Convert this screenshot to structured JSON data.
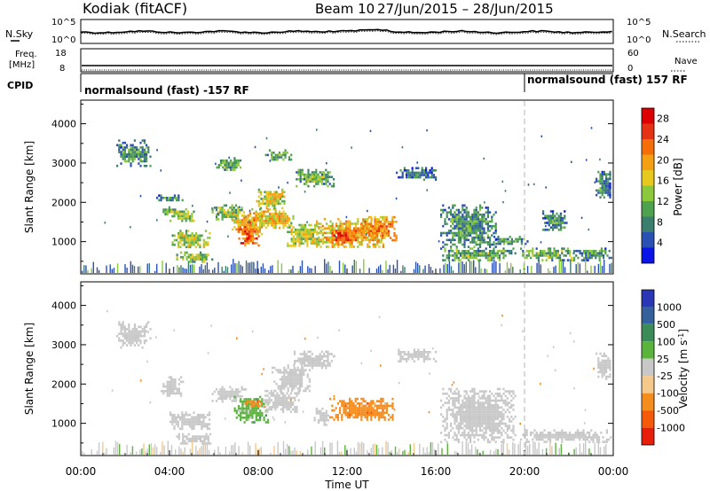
{
  "header": {
    "title": "Kodiak (fitACF)",
    "beam": "Beam 10",
    "date_range": "27/Jun/2015 – 28/Jun/2015"
  },
  "strips": {
    "nsky_label": "N.Sky",
    "nsearch_label": "N.Search",
    "noise_ticks": [
      "10^5",
      "10^0"
    ],
    "freq_label_1": "Freq.",
    "freq_label_2": "[MHz]",
    "freq_ticks": [
      "18",
      "8"
    ],
    "nave_label": "Nave",
    "nave_ticks": [
      "60",
      "0"
    ],
    "cpid_label": "CPID",
    "cpid_segments": [
      {
        "text": "normalsound (fast) -157 RF",
        "start_h": 0
      },
      {
        "text": "normalsound (fast) 157 RF",
        "start_h": 20
      }
    ]
  },
  "chart_data": [
    {
      "type": "heatmap",
      "panel": "power",
      "xlabel": "",
      "ylabel": "Slant Range [km]",
      "x_range_hours": [
        0,
        24
      ],
      "ylim": [
        180,
        4600
      ],
      "yticks": [
        1000,
        2000,
        3000,
        4000
      ],
      "colorbar": {
        "label": "Power [dB]",
        "ticks": [
          4,
          8,
          12,
          16,
          20,
          24,
          28
        ],
        "range": [
          0,
          30
        ],
        "colors": [
          "#0a14e6",
          "#2b50b4",
          "#3c7e6e",
          "#4ea24e",
          "#8cc83c",
          "#e6c81e",
          "#f5a014",
          "#f56e0a",
          "#e63214",
          "#dc0000"
        ]
      },
      "echo_regions": [
        {
          "t": [
            1.6,
            3.1
          ],
          "r": [
            2950,
            3600
          ],
          "value": 8
        },
        {
          "t": [
            3.4,
            4.6
          ],
          "r": [
            2050,
            2200
          ],
          "value": 8
        },
        {
          "t": [
            3.6,
            4.4
          ],
          "r": [
            1700,
            1900
          ],
          "value": 10
        },
        {
          "t": [
            4.0,
            5.2
          ],
          "r": [
            1500,
            1850
          ],
          "value": 12
        },
        {
          "t": [
            4.1,
            5.8
          ],
          "r": [
            850,
            1300
          ],
          "value": 14
        },
        {
          "t": [
            4.3,
            5.9
          ],
          "r": [
            500,
            750
          ],
          "value": 13
        },
        {
          "t": [
            6.1,
            7.2
          ],
          "r": [
            2850,
            3150
          ],
          "value": 10
        },
        {
          "t": [
            5.9,
            7.4
          ],
          "r": [
            1550,
            1950
          ],
          "value": 12
        },
        {
          "t": [
            6.8,
            8.2
          ],
          "r": [
            1200,
            1750
          ],
          "value": 19
        },
        {
          "t": [
            7.1,
            8.0
          ],
          "r": [
            900,
            1400
          ],
          "value": 23
        },
        {
          "t": [
            7.6,
            9.6
          ],
          "r": [
            1350,
            1850
          ],
          "value": 17
        },
        {
          "t": [
            7.9,
            9.2
          ],
          "r": [
            1850,
            2350
          ],
          "value": 15
        },
        {
          "t": [
            8.3,
            9.5
          ],
          "r": [
            3100,
            3350
          ],
          "value": 9
        },
        {
          "t": [
            9.6,
            11.4
          ],
          "r": [
            2400,
            2850
          ],
          "value": 10
        },
        {
          "t": [
            9.2,
            10.9
          ],
          "r": [
            900,
            1450
          ],
          "value": 14
        },
        {
          "t": [
            10.6,
            13.6
          ],
          "r": [
            850,
            1600
          ],
          "value": 18
        },
        {
          "t": [
            11.3,
            12.4
          ],
          "r": [
            950,
            1300
          ],
          "value": 24
        },
        {
          "t": [
            12.6,
            14.2
          ],
          "r": [
            1050,
            1650
          ],
          "value": 20
        },
        {
          "t": [
            14.2,
            16.0
          ],
          "r": [
            2600,
            2900
          ],
          "value": 7
        },
        {
          "t": [
            16.2,
            18.7
          ],
          "r": [
            850,
            1950
          ],
          "value": 8
        },
        {
          "t": [
            16.2,
            19.6
          ],
          "r": [
            550,
            850
          ],
          "value": 10
        },
        {
          "t": [
            18.6,
            20.2
          ],
          "r": [
            950,
            1150
          ],
          "value": 8
        },
        {
          "t": [
            19.8,
            22.2
          ],
          "r": [
            550,
            850
          ],
          "value": 11
        },
        {
          "t": [
            20.8,
            21.9
          ],
          "r": [
            1300,
            1800
          ],
          "value": 7
        },
        {
          "t": [
            22.2,
            23.9
          ],
          "r": [
            550,
            850
          ],
          "value": 8
        },
        {
          "t": [
            23.2,
            23.9
          ],
          "r": [
            2100,
            2800
          ],
          "value": 7
        }
      ]
    },
    {
      "type": "heatmap",
      "panel": "velocity",
      "xlabel": "Time UT",
      "ylabel": "Slant Range [km]",
      "x_range_hours": [
        0,
        24
      ],
      "xticks": [
        "00:00",
        "04:00",
        "08:00",
        "12:00",
        "16:00",
        "20:00",
        "00:00"
      ],
      "ylim": [
        180,
        4600
      ],
      "yticks": [
        1000,
        2000,
        3000,
        4000
      ],
      "colorbar": {
        "label": "Velocity [m s^-1]",
        "ticks": [
          "1000",
          "500",
          "100",
          "25",
          "-25",
          "-100",
          "-500",
          "-1000"
        ],
        "colors": [
          "#2a36b4",
          "#34609c",
          "#3c8c5a",
          "#5ab43c",
          "#c8c8c8",
          "#f5c88c",
          "#f58c1e",
          "#f55a0a",
          "#e61e0a"
        ],
        "levels": [
          1000,
          500,
          100,
          25,
          -25,
          -100,
          -500,
          -1000
        ]
      },
      "echo_regions": [
        {
          "t": [
            1.6,
            3.1
          ],
          "r": [
            2950,
            3600
          ],
          "vel": 0
        },
        {
          "t": [
            3.6,
            4.6
          ],
          "r": [
            1700,
            2200
          ],
          "vel": 0
        },
        {
          "t": [
            4.0,
            5.8
          ],
          "r": [
            850,
            1300
          ],
          "vel": 0
        },
        {
          "t": [
            4.3,
            5.9
          ],
          "r": [
            500,
            750
          ],
          "vel": 0
        },
        {
          "t": [
            5.9,
            7.4
          ],
          "r": [
            1550,
            1950
          ],
          "vel": 0
        },
        {
          "t": [
            6.9,
            8.4
          ],
          "r": [
            1050,
            1700
          ],
          "vel": 60
        },
        {
          "t": [
            7.3,
            8.1
          ],
          "r": [
            1450,
            1650
          ],
          "vel": -300
        },
        {
          "t": [
            8.2,
            9.8
          ],
          "r": [
            1300,
            1850
          ],
          "vel": 0
        },
        {
          "t": [
            8.6,
            10.3
          ],
          "r": [
            1800,
            2500
          ],
          "vel": 0
        },
        {
          "t": [
            9.6,
            11.4
          ],
          "r": [
            2400,
            2850
          ],
          "vel": 0
        },
        {
          "t": [
            10.5,
            11.2
          ],
          "r": [
            950,
            1400
          ],
          "vel": 0
        },
        {
          "t": [
            11.2,
            14.1
          ],
          "r": [
            1100,
            1650
          ],
          "vel": -300
        },
        {
          "t": [
            14.2,
            16.0
          ],
          "r": [
            2600,
            2900
          ],
          "vel": 0
        },
        {
          "t": [
            16.2,
            19.6
          ],
          "r": [
            550,
            1900
          ],
          "vel": 0
        },
        {
          "t": [
            19.8,
            23.9
          ],
          "r": [
            550,
            850
          ],
          "vel": 0
        },
        {
          "t": [
            23.2,
            23.9
          ],
          "r": [
            2100,
            2800
          ],
          "vel": 0
        }
      ]
    }
  ]
}
